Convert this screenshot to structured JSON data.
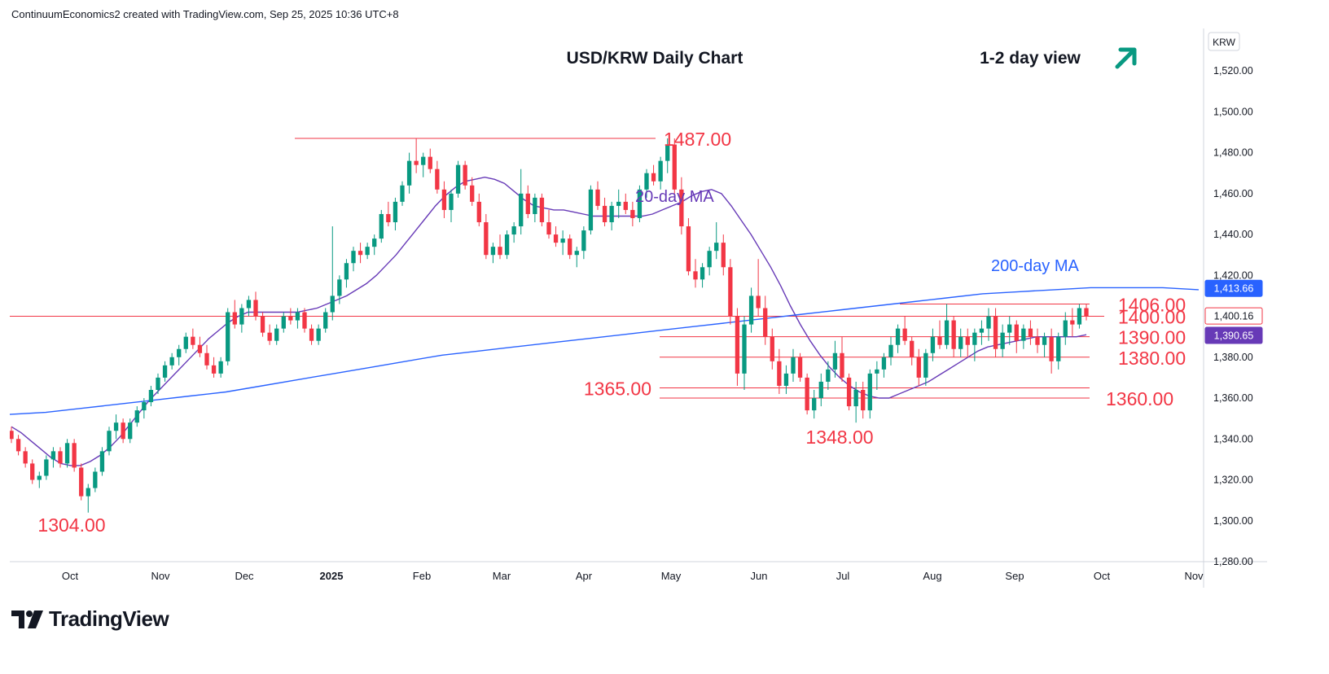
{
  "header": {
    "attribution": "ContinuumEconomics2 created with TradingView.com, Sep 25, 2025 10:36 UTC+8"
  },
  "brand": {
    "name": "TradingView",
    "logo_icon": "tradingview-logo-icon"
  },
  "colors": {
    "up": "#089981",
    "down": "#f23645",
    "ma20": "#673ab7",
    "ma200": "#2962ff",
    "level": "#f23645",
    "arrow": "#089981"
  },
  "chart_data": {
    "type": "candlestick",
    "title": "USD/KRW Daily Chart",
    "view_label": "1-2 day view",
    "view_icon": "arrow-up-right-icon",
    "symbol": "KRW",
    "y_ticks": [
      "1,520.00",
      "1,500.00",
      "1,480.00",
      "1,460.00",
      "1,440.00",
      "1,420.00",
      "1,400.00",
      "1,380.00",
      "1,360.00",
      "1,340.00",
      "1,320.00",
      "1,300.00",
      "1,280.00"
    ],
    "ylim": [
      1280,
      1540
    ],
    "x_ticks": [
      "Oct",
      "Nov",
      "Dec",
      "2025",
      "Feb",
      "Mar",
      "Apr",
      "May",
      "Jun",
      "Jul",
      "Aug",
      "Sep",
      "Oct",
      "Nov"
    ],
    "grid": false,
    "series_labels": {
      "ma20": "20-day MA",
      "ma200": "200-day MA"
    },
    "price_badges": {
      "ma200": "1,413.66",
      "last": "1,400.16",
      "ma20": "1,390.65"
    },
    "levels": [
      {
        "label": "1487.00",
        "value": 1487
      },
      {
        "label": "1406.00",
        "value": 1406
      },
      {
        "label": "1400.00",
        "value": 1400
      },
      {
        "label": "1390.00",
        "value": 1390
      },
      {
        "label": "1380.00",
        "value": 1380
      },
      {
        "label": "1365.00",
        "value": 1365
      },
      {
        "label": "1360.00",
        "value": 1360
      }
    ],
    "annotations": [
      {
        "label": "1304.00",
        "value": 1304
      },
      {
        "label": "1348.00",
        "value": 1348
      }
    ],
    "candles": [
      [
        1344,
        1346,
        1338,
        1340
      ],
      [
        1340,
        1342,
        1332,
        1334
      ],
      [
        1334,
        1336,
        1326,
        1328
      ],
      [
        1328,
        1330,
        1318,
        1320
      ],
      [
        1320,
        1324,
        1316,
        1322
      ],
      [
        1322,
        1332,
        1320,
        1330
      ],
      [
        1330,
        1336,
        1326,
        1334
      ],
      [
        1334,
        1336,
        1326,
        1328
      ],
      [
        1328,
        1340,
        1326,
        1338
      ],
      [
        1338,
        1340,
        1324,
        1326
      ],
      [
        1326,
        1328,
        1310,
        1312
      ],
      [
        1312,
        1318,
        1304,
        1316
      ],
      [
        1316,
        1326,
        1314,
        1324
      ],
      [
        1324,
        1336,
        1322,
        1334
      ],
      [
        1334,
        1346,
        1332,
        1344
      ],
      [
        1344,
        1352,
        1340,
        1348
      ],
      [
        1348,
        1350,
        1338,
        1340
      ],
      [
        1340,
        1350,
        1338,
        1348
      ],
      [
        1348,
        1356,
        1346,
        1354
      ],
      [
        1354,
        1360,
        1350,
        1358
      ],
      [
        1358,
        1366,
        1356,
        1364
      ],
      [
        1364,
        1372,
        1362,
        1370
      ],
      [
        1370,
        1378,
        1368,
        1376
      ],
      [
        1376,
        1382,
        1374,
        1380
      ],
      [
        1380,
        1386,
        1376,
        1384
      ],
      [
        1384,
        1392,
        1382,
        1390
      ],
      [
        1390,
        1394,
        1384,
        1386
      ],
      [
        1386,
        1390,
        1380,
        1382
      ],
      [
        1382,
        1386,
        1374,
        1376
      ],
      [
        1376,
        1380,
        1370,
        1372
      ],
      [
        1372,
        1380,
        1370,
        1378
      ],
      [
        1378,
        1404,
        1376,
        1402
      ],
      [
        1402,
        1408,
        1394,
        1396
      ],
      [
        1396,
        1406,
        1392,
        1404
      ],
      [
        1404,
        1410,
        1400,
        1408
      ],
      [
        1408,
        1412,
        1398,
        1400
      ],
      [
        1400,
        1402,
        1390,
        1392
      ],
      [
        1392,
        1396,
        1386,
        1388
      ],
      [
        1388,
        1396,
        1386,
        1394
      ],
      [
        1394,
        1402,
        1392,
        1400
      ],
      [
        1400,
        1404,
        1396,
        1398
      ],
      [
        1398,
        1404,
        1394,
        1402
      ],
      [
        1402,
        1404,
        1392,
        1394
      ],
      [
        1394,
        1396,
        1386,
        1388
      ],
      [
        1388,
        1396,
        1386,
        1394
      ],
      [
        1394,
        1404,
        1392,
        1402
      ],
      [
        1402,
        1444,
        1398,
        1410
      ],
      [
        1410,
        1420,
        1406,
        1418
      ],
      [
        1418,
        1428,
        1414,
        1426
      ],
      [
        1426,
        1434,
        1422,
        1432
      ],
      [
        1432,
        1436,
        1426,
        1430
      ],
      [
        1430,
        1436,
        1428,
        1434
      ],
      [
        1434,
        1440,
        1430,
        1438
      ],
      [
        1438,
        1452,
        1436,
        1450
      ],
      [
        1450,
        1456,
        1444,
        1446
      ],
      [
        1446,
        1458,
        1442,
        1456
      ],
      [
        1456,
        1466,
        1454,
        1464
      ],
      [
        1464,
        1480,
        1460,
        1476
      ],
      [
        1476,
        1487,
        1470,
        1474
      ],
      [
        1474,
        1480,
        1468,
        1478
      ],
      [
        1478,
        1482,
        1470,
        1472
      ],
      [
        1472,
        1476,
        1460,
        1462
      ],
      [
        1462,
        1466,
        1448,
        1452
      ],
      [
        1452,
        1462,
        1446,
        1460
      ],
      [
        1460,
        1476,
        1458,
        1474
      ],
      [
        1474,
        1476,
        1462,
        1464
      ],
      [
        1464,
        1468,
        1454,
        1456
      ],
      [
        1456,
        1460,
        1444,
        1446
      ],
      [
        1446,
        1450,
        1428,
        1430
      ],
      [
        1430,
        1436,
        1426,
        1434
      ],
      [
        1434,
        1440,
        1428,
        1430
      ],
      [
        1430,
        1442,
        1428,
        1440
      ],
      [
        1440,
        1446,
        1436,
        1444
      ],
      [
        1444,
        1472,
        1440,
        1460
      ],
      [
        1460,
        1464,
        1448,
        1450
      ],
      [
        1450,
        1460,
        1446,
        1458
      ],
      [
        1458,
        1460,
        1444,
        1446
      ],
      [
        1446,
        1452,
        1438,
        1440
      ],
      [
        1440,
        1444,
        1434,
        1436
      ],
      [
        1436,
        1442,
        1430,
        1438
      ],
      [
        1438,
        1440,
        1428,
        1430
      ],
      [
        1430,
        1434,
        1424,
        1432
      ],
      [
        1432,
        1444,
        1428,
        1442
      ],
      [
        1442,
        1464,
        1440,
        1462
      ],
      [
        1462,
        1466,
        1452,
        1454
      ],
      [
        1454,
        1458,
        1444,
        1446
      ],
      [
        1446,
        1456,
        1442,
        1454
      ],
      [
        1454,
        1462,
        1448,
        1456
      ],
      [
        1456,
        1460,
        1450,
        1452
      ],
      [
        1452,
        1456,
        1444,
        1448
      ],
      [
        1448,
        1464,
        1446,
        1462
      ],
      [
        1462,
        1472,
        1458,
        1470
      ],
      [
        1470,
        1474,
        1464,
        1466
      ],
      [
        1466,
        1478,
        1462,
        1476
      ],
      [
        1476,
        1487,
        1470,
        1484
      ],
      [
        1484,
        1487,
        1460,
        1462
      ],
      [
        1462,
        1468,
        1440,
        1444
      ],
      [
        1444,
        1448,
        1420,
        1422
      ],
      [
        1422,
        1428,
        1414,
        1418
      ],
      [
        1418,
        1426,
        1414,
        1424
      ],
      [
        1424,
        1434,
        1420,
        1432
      ],
      [
        1432,
        1446,
        1428,
        1436
      ],
      [
        1436,
        1440,
        1420,
        1424
      ],
      [
        1424,
        1428,
        1396,
        1400
      ],
      [
        1400,
        1404,
        1366,
        1372
      ],
      [
        1372,
        1400,
        1364,
        1396
      ],
      [
        1396,
        1414,
        1392,
        1410
      ],
      [
        1410,
        1428,
        1400,
        1404
      ],
      [
        1404,
        1410,
        1386,
        1390
      ],
      [
        1390,
        1394,
        1374,
        1378
      ],
      [
        1378,
        1384,
        1362,
        1366
      ],
      [
        1366,
        1376,
        1362,
        1372
      ],
      [
        1372,
        1384,
        1368,
        1380
      ],
      [
        1380,
        1382,
        1368,
        1370
      ],
      [
        1370,
        1372,
        1352,
        1354
      ],
      [
        1354,
        1364,
        1350,
        1360
      ],
      [
        1360,
        1372,
        1356,
        1368
      ],
      [
        1368,
        1378,
        1364,
        1374
      ],
      [
        1374,
        1388,
        1370,
        1382
      ],
      [
        1382,
        1390,
        1368,
        1370
      ],
      [
        1370,
        1372,
        1354,
        1356
      ],
      [
        1356,
        1368,
        1348,
        1364
      ],
      [
        1364,
        1368,
        1350,
        1354
      ],
      [
        1354,
        1374,
        1350,
        1372
      ],
      [
        1372,
        1378,
        1364,
        1374
      ],
      [
        1374,
        1382,
        1370,
        1380
      ],
      [
        1380,
        1390,
        1376,
        1386
      ],
      [
        1386,
        1396,
        1382,
        1394
      ],
      [
        1394,
        1400,
        1386,
        1388
      ],
      [
        1388,
        1390,
        1376,
        1380
      ],
      [
        1380,
        1384,
        1366,
        1370
      ],
      [
        1370,
        1384,
        1366,
        1382
      ],
      [
        1382,
        1394,
        1378,
        1390
      ],
      [
        1390,
        1398,
        1384,
        1386
      ],
      [
        1386,
        1406,
        1384,
        1398
      ],
      [
        1398,
        1400,
        1380,
        1384
      ],
      [
        1384,
        1394,
        1380,
        1390
      ],
      [
        1390,
        1394,
        1380,
        1386
      ],
      [
        1386,
        1394,
        1378,
        1392
      ],
      [
        1392,
        1398,
        1386,
        1394
      ],
      [
        1394,
        1404,
        1388,
        1400
      ],
      [
        1400,
        1404,
        1380,
        1384
      ],
      [
        1384,
        1396,
        1380,
        1392
      ],
      [
        1392,
        1400,
        1386,
        1396
      ],
      [
        1396,
        1398,
        1382,
        1388
      ],
      [
        1388,
        1396,
        1384,
        1394
      ],
      [
        1394,
        1398,
        1386,
        1390
      ],
      [
        1390,
        1394,
        1382,
        1386
      ],
      [
        1386,
        1392,
        1380,
        1390
      ],
      [
        1390,
        1394,
        1372,
        1378
      ],
      [
        1378,
        1392,
        1374,
        1390
      ],
      [
        1390,
        1402,
        1386,
        1398
      ],
      [
        1398,
        1404,
        1390,
        1396
      ],
      [
        1396,
        1406,
        1394,
        1404
      ],
      [
        1404,
        1406,
        1398,
        1400
      ]
    ],
    "ma20": [
      1346,
      1343,
      1339,
      1335,
      1331,
      1328,
      1327,
      1327,
      1329,
      1332,
      1336,
      1341,
      1347,
      1353,
      1359,
      1364,
      1369,
      1374,
      1379,
      1384,
      1389,
      1393,
      1397,
      1400,
      1402,
      1402,
      1402,
      1402,
      1402,
      1402,
      1403,
      1404,
      1406,
      1408,
      1410,
      1413,
      1416,
      1420,
      1425,
      1430,
      1436,
      1442,
      1448,
      1454,
      1459,
      1463,
      1466,
      1467,
      1468,
      1467,
      1465,
      1461,
      1457,
      1454,
      1453,
      1452,
      1452,
      1451,
      1450,
      1449,
      1449,
      1449,
      1449,
      1449,
      1449,
      1450,
      1452,
      1454,
      1456,
      1459,
      1461,
      1462,
      1460,
      1454,
      1447,
      1440,
      1432,
      1424,
      1415,
      1405,
      1396,
      1388,
      1381,
      1375,
      1370,
      1366,
      1363,
      1361,
      1360,
      1360,
      1362,
      1364,
      1366,
      1368,
      1371,
      1374,
      1377,
      1380,
      1383,
      1385,
      1386,
      1387,
      1388,
      1389,
      1390,
      1390,
      1390,
      1390,
      1390,
      1391
    ],
    "ma200": [
      1352,
      1353,
      1355,
      1357,
      1359,
      1361,
      1363,
      1366,
      1369,
      1372,
      1375,
      1378,
      1381,
      1383,
      1385,
      1387,
      1389,
      1391,
      1393,
      1395,
      1397,
      1399,
      1401,
      1403,
      1405,
      1407,
      1409,
      1411,
      1412,
      1413,
      1414,
      1414,
      1414,
      1413
    ]
  }
}
